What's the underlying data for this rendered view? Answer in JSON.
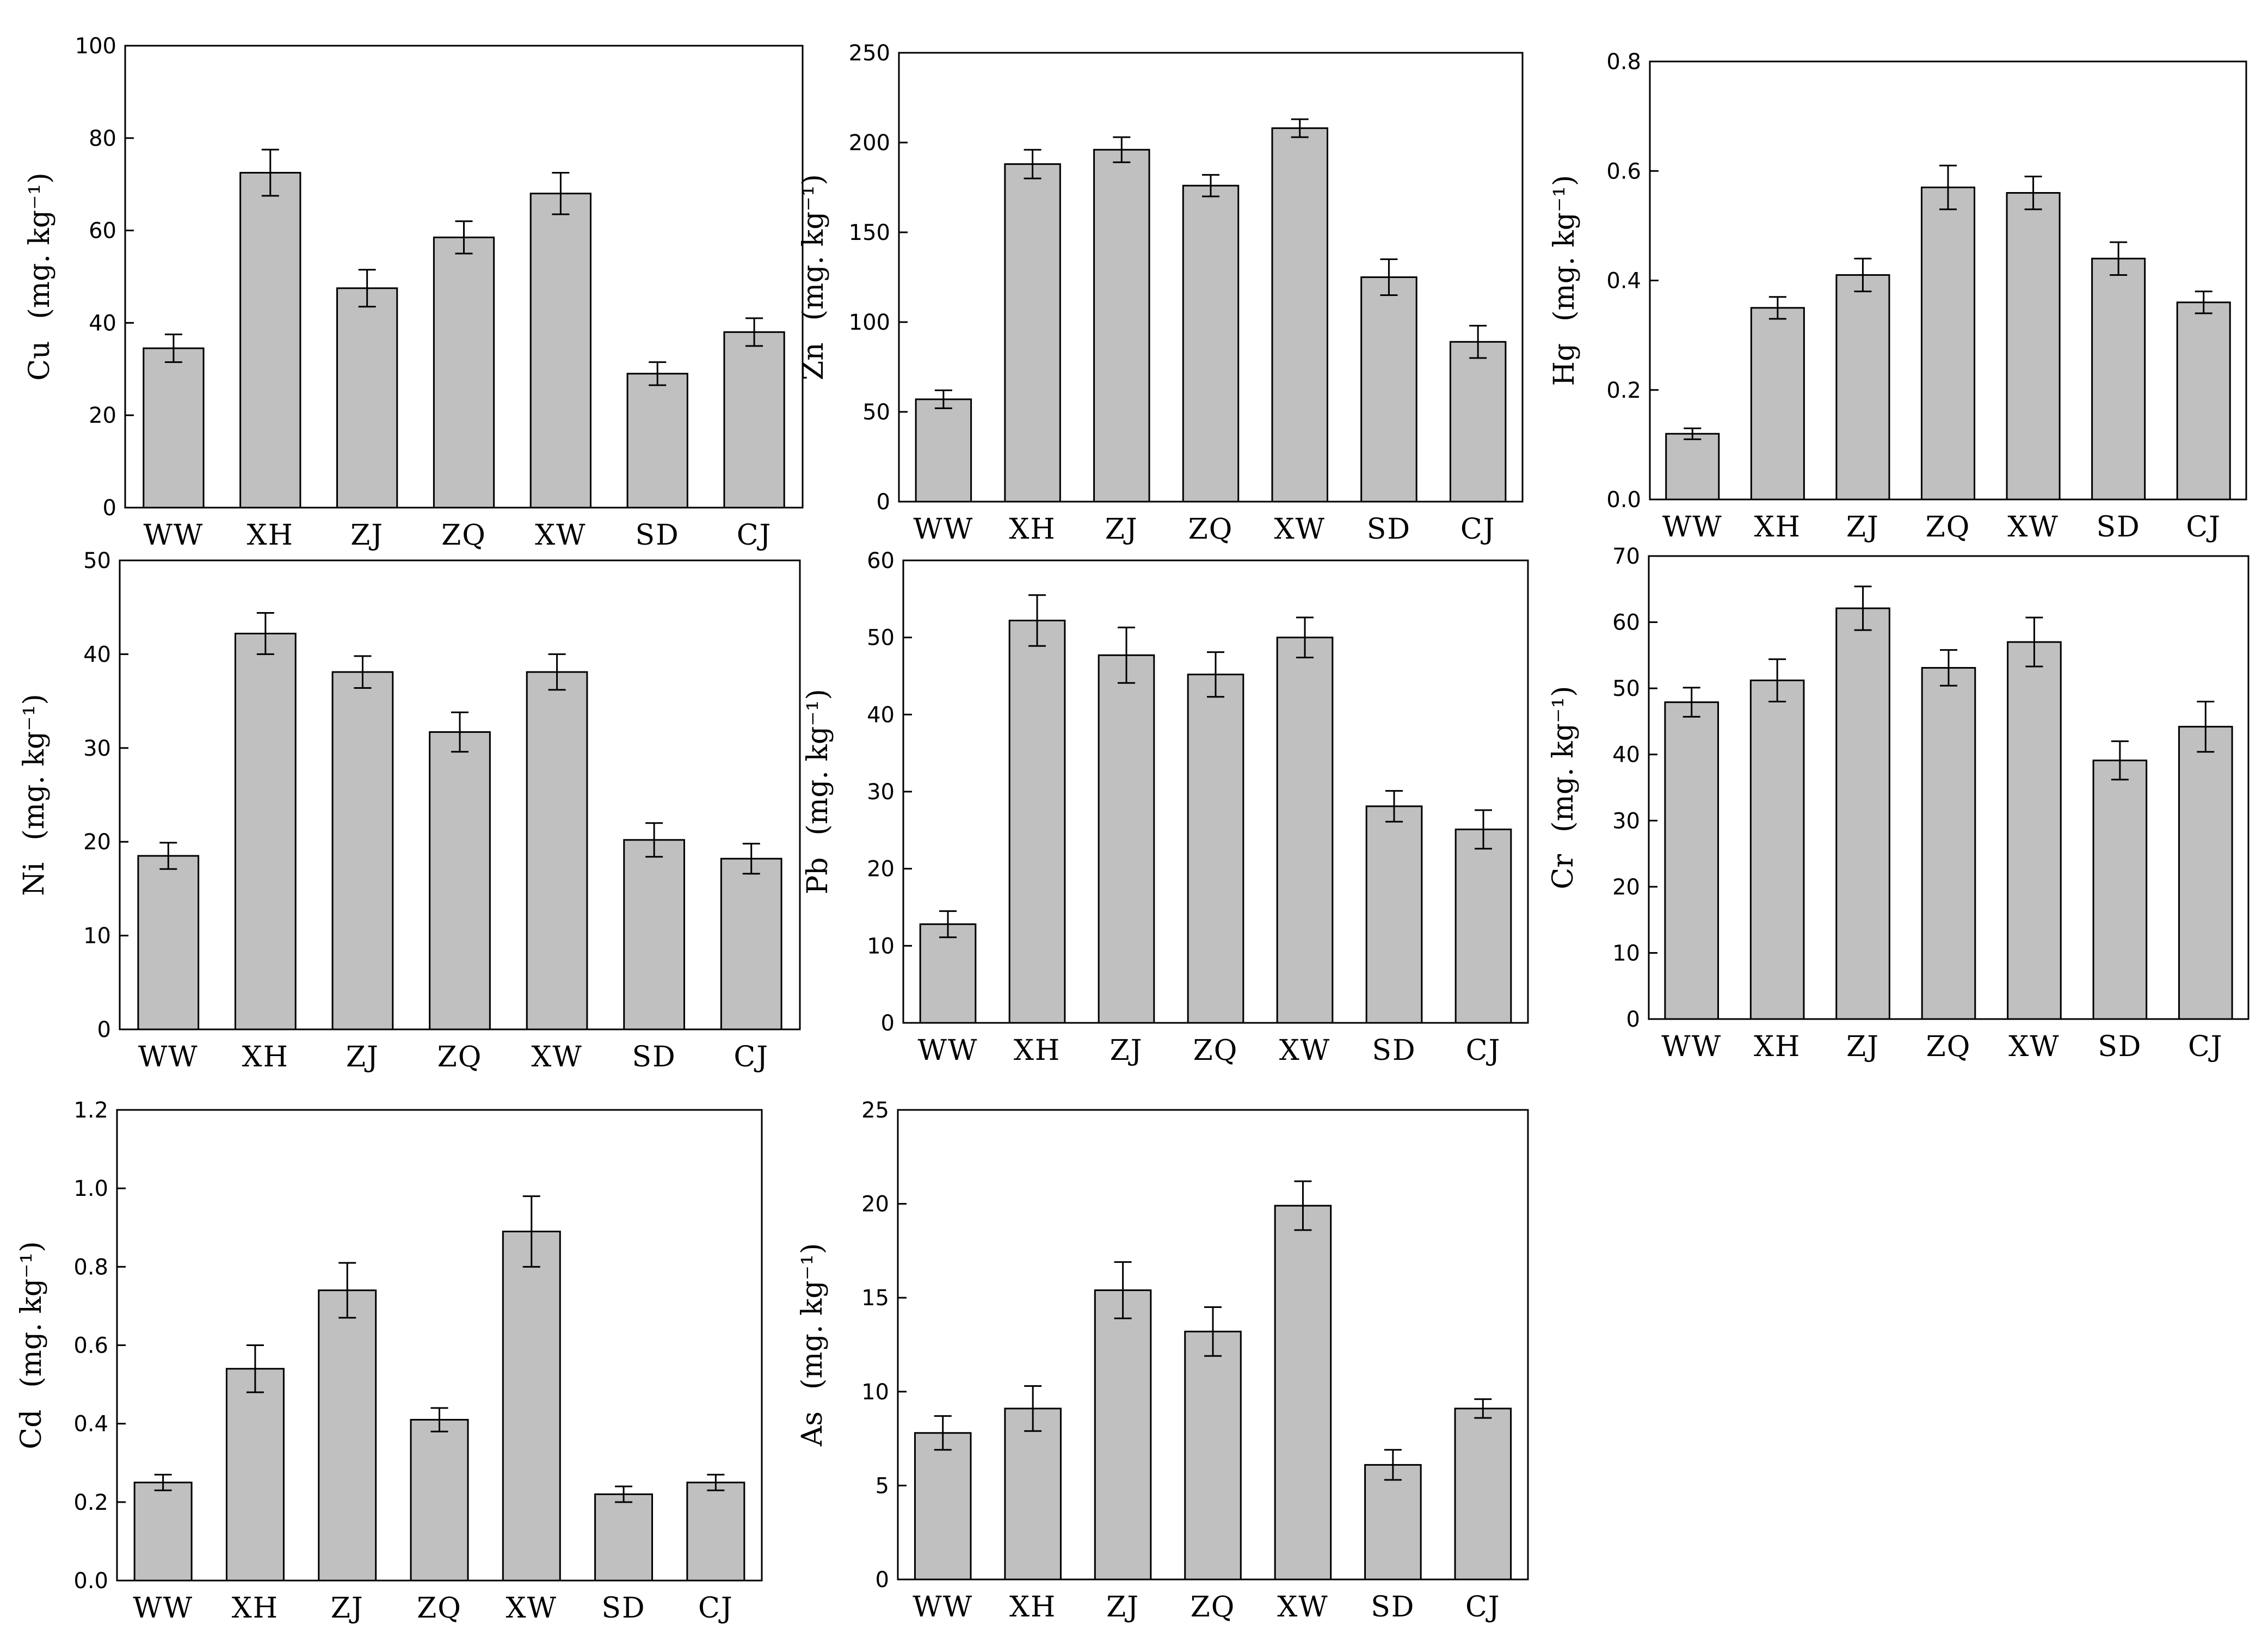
{
  "colors": {
    "bar_fill": "#c0c0c0",
    "stroke": "#000000",
    "background": "#ffffff"
  },
  "chart_data": [
    {
      "type": "bar",
      "element": "Cu",
      "unit": "(mg. kg⁻¹)",
      "categories": [
        "WW",
        "XH",
        "ZJ",
        "ZQ",
        "XW",
        "SD",
        "CJ"
      ],
      "values": [
        34.5,
        72.5,
        47.5,
        58.5,
        68,
        29,
        38
      ],
      "errors": [
        3,
        5,
        4,
        3.5,
        4.5,
        2.5,
        3
      ],
      "ylim": [
        0,
        100
      ],
      "yticks": [
        0,
        20,
        40,
        60,
        80,
        100
      ],
      "ytick_labels": [
        "0",
        "20",
        "40",
        "60",
        "80",
        "100"
      ]
    },
    {
      "type": "bar",
      "element": "Zn",
      "unit": "(mg. kg⁻¹)",
      "categories": [
        "WW",
        "XH",
        "ZJ",
        "ZQ",
        "XW",
        "SD",
        "CJ"
      ],
      "values": [
        57,
        188,
        196,
        176,
        208,
        125,
        89
      ],
      "errors": [
        5,
        8,
        7,
        6,
        5,
        10,
        9
      ],
      "ylim": [
        0,
        250
      ],
      "yticks": [
        0,
        50,
        100,
        150,
        200,
        250
      ],
      "ytick_labels": [
        "0",
        "50",
        "100",
        "150",
        "200",
        "250"
      ]
    },
    {
      "type": "bar",
      "element": "Hg",
      "unit": "(mg. kg⁻¹)",
      "categories": [
        "WW",
        "XH",
        "ZJ",
        "ZQ",
        "XW",
        "SD",
        "CJ"
      ],
      "values": [
        0.12,
        0.35,
        0.41,
        0.57,
        0.56,
        0.44,
        0.36
      ],
      "errors": [
        0.01,
        0.02,
        0.03,
        0.04,
        0.03,
        0.03,
        0.02
      ],
      "ylim": [
        0,
        0.8
      ],
      "yticks": [
        0,
        0.2,
        0.4,
        0.6,
        0.8
      ],
      "ytick_labels": [
        "0.0",
        "0.2",
        "0.4",
        "0.6",
        "0.8"
      ]
    },
    {
      "type": "bar",
      "element": "Ni",
      "unit": "(mg. kg⁻¹)",
      "categories": [
        "WW",
        "XH",
        "ZJ",
        "ZQ",
        "XW",
        "SD",
        "CJ"
      ],
      "values": [
        18.5,
        42.2,
        38.1,
        31.7,
        38.1,
        20.2,
        18.2
      ],
      "errors": [
        1.4,
        2.2,
        1.7,
        2.1,
        1.9,
        1.8,
        1.6
      ],
      "ylim": [
        0,
        50
      ],
      "yticks": [
        0,
        10,
        20,
        30,
        40,
        50
      ],
      "ytick_labels": [
        "0",
        "10",
        "20",
        "30",
        "40",
        "50"
      ]
    },
    {
      "type": "bar",
      "element": "Pb",
      "unit": "(mg. kg⁻¹)",
      "categories": [
        "WW",
        "XH",
        "ZJ",
        "ZQ",
        "XW",
        "SD",
        "CJ"
      ],
      "values": [
        12.8,
        52.2,
        47.7,
        45.2,
        50,
        28.1,
        25.1
      ],
      "errors": [
        1.7,
        3.3,
        3.6,
        2.9,
        2.6,
        2,
        2.5
      ],
      "ylim": [
        0,
        60
      ],
      "yticks": [
        0,
        10,
        20,
        30,
        40,
        50,
        60
      ],
      "ytick_labels": [
        "0",
        "10",
        "20",
        "30",
        "40",
        "50",
        "60"
      ]
    },
    {
      "type": "bar",
      "element": "Cr",
      "unit": "(mg. kg⁻¹)",
      "categories": [
        "WW",
        "XH",
        "ZJ",
        "ZQ",
        "XW",
        "SD",
        "CJ"
      ],
      "values": [
        47.9,
        51.2,
        62.1,
        53.1,
        57,
        39.1,
        44.2
      ],
      "errors": [
        2.2,
        3.2,
        3.3,
        2.7,
        3.7,
        2.9,
        3.8
      ],
      "ylim": [
        0,
        70
      ],
      "yticks": [
        0,
        10,
        20,
        30,
        40,
        50,
        60,
        70
      ],
      "ytick_labels": [
        "0",
        "10",
        "20",
        "30",
        "40",
        "50",
        "60",
        "70"
      ]
    },
    {
      "type": "bar",
      "element": "Cd",
      "unit": "(mg. kg⁻¹)",
      "categories": [
        "WW",
        "XH",
        "ZJ",
        "ZQ",
        "XW",
        "SD",
        "CJ"
      ],
      "values": [
        0.25,
        0.54,
        0.74,
        0.41,
        0.89,
        0.22,
        0.25
      ],
      "errors": [
        0.02,
        0.06,
        0.07,
        0.03,
        0.09,
        0.02,
        0.02
      ],
      "ylim": [
        0,
        1.2
      ],
      "yticks": [
        0,
        0.2,
        0.4,
        0.6,
        0.8,
        1.0,
        1.2
      ],
      "ytick_labels": [
        "0.0",
        "0.2",
        "0.4",
        "0.6",
        "0.8",
        "1.0",
        "1.2"
      ]
    },
    {
      "type": "bar",
      "element": "As",
      "unit": "(mg. kg⁻¹)",
      "categories": [
        "WW",
        "XH",
        "ZJ",
        "ZQ",
        "XW",
        "SD",
        "CJ"
      ],
      "values": [
        7.8,
        9.1,
        15.4,
        13.2,
        19.9,
        6.1,
        9.1
      ],
      "errors": [
        0.9,
        1.2,
        1.5,
        1.3,
        1.3,
        0.8,
        0.5
      ],
      "ylim": [
        0,
        25
      ],
      "yticks": [
        0,
        5,
        10,
        15,
        20,
        25
      ],
      "ytick_labels": [
        "0",
        "5",
        "10",
        "15",
        "20",
        "25"
      ]
    }
  ]
}
